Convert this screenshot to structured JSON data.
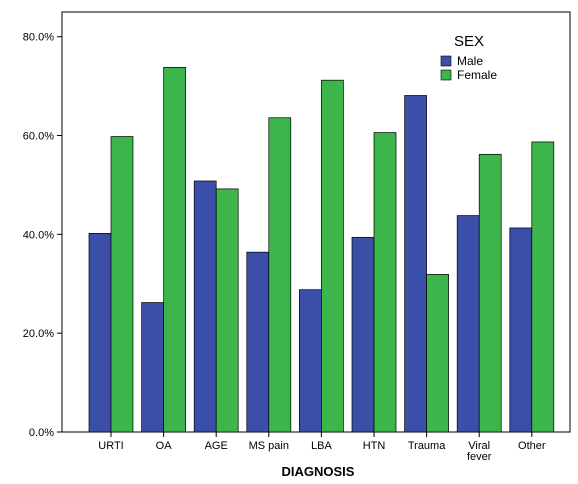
{
  "chart_data": {
    "type": "bar",
    "xlabel": "DIAGNOSIS",
    "ylabel": "",
    "ylim": [
      0,
      0.85
    ],
    "y_ticks": [
      {
        "value": 0.0,
        "label": "0.0%"
      },
      {
        "value": 0.2,
        "label": "20.0%"
      },
      {
        "value": 0.4,
        "label": "40.0%"
      },
      {
        "value": 0.6,
        "label": "60.0%"
      },
      {
        "value": 0.8,
        "label": "80.0%"
      }
    ],
    "categories": [
      [
        "URTI"
      ],
      [
        "OA"
      ],
      [
        "AGE"
      ],
      [
        "MS pain"
      ],
      [
        "LBA"
      ],
      [
        "HTN"
      ],
      [
        "Trauma"
      ],
      [
        "Viral",
        "fever"
      ],
      [
        "Other"
      ]
    ],
    "legend": {
      "title": "SEX",
      "position": "top-right"
    },
    "series": [
      {
        "name": "Male",
        "color": "#3b4fa8",
        "values": [
          0.402,
          0.262,
          0.508,
          0.364,
          0.288,
          0.394,
          0.681,
          0.438,
          0.413
        ]
      },
      {
        "name": "Female",
        "color": "#3cb54a",
        "values": [
          0.598,
          0.738,
          0.492,
          0.636,
          0.712,
          0.606,
          0.319,
          0.562,
          0.587
        ]
      }
    ],
    "grid": false
  }
}
